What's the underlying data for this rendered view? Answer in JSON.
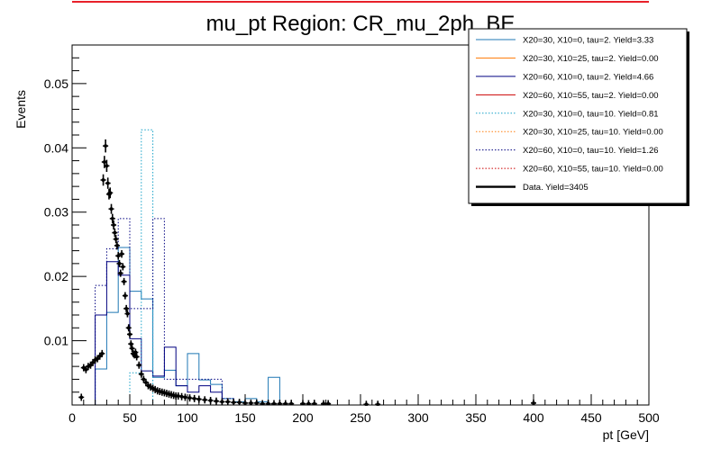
{
  "chart_data": {
    "type": "line",
    "title": "mu_pt Region: CR_mu_2ph_BE",
    "xlabel": "pt [GeV]",
    "ylabel": "Events",
    "xlim": [
      0,
      500
    ],
    "ylim": [
      0,
      0.056
    ],
    "x_ticks": [
      0,
      50,
      100,
      150,
      200,
      250,
      300,
      350,
      400,
      450,
      500
    ],
    "x_tick_labels": [
      "0",
      "50",
      "100",
      "150",
      "200",
      "250",
      "300",
      "350",
      "400",
      "450",
      "500"
    ],
    "y_ticks": [
      0.01,
      0.02,
      0.03,
      0.04,
      0.05
    ],
    "y_tick_labels": [
      "0.01",
      "0.02",
      "0.03",
      "0.04",
      "0.05"
    ],
    "grid": false,
    "legend_position": "top-right",
    "bin_width": 10,
    "series": [
      {
        "name": "X20=30, X10=0, tau=2. Yield=3.33",
        "color": "#1f77b4",
        "style": "solid",
        "edges": [
          20,
          30,
          40,
          50,
          60,
          70,
          80,
          90,
          100,
          110,
          120,
          130,
          140,
          150,
          160,
          170,
          180
        ],
        "values": [
          0.0056,
          0.0144,
          0.0245,
          0.0177,
          0.0165,
          0.0043,
          0.0054,
          0.003,
          0.008,
          0.0039,
          0.0032,
          0.001,
          0.0005,
          0.001,
          0.0005,
          0.0043
        ]
      },
      {
        "name": "X20=30, X10=25, tau=2. Yield=0.00",
        "color": "#ff7f0e",
        "style": "solid",
        "edges": [],
        "values": []
      },
      {
        "name": "X20=60, X10=0, tau=2. Yield=4.66",
        "color": "#000080",
        "style": "solid",
        "edges": [
          20,
          30,
          40,
          50,
          60,
          70,
          80,
          90,
          100,
          110,
          120,
          130
        ],
        "values": [
          0.014,
          0.0223,
          0.0202,
          0.0103,
          0.0053,
          0.0045,
          0.009,
          0.003,
          0.002,
          0.003,
          0.002
        ]
      },
      {
        "name": "X20=60, X10=55, tau=2. Yield=0.00",
        "color": "#cc0000",
        "style": "solid",
        "edges": [],
        "values": []
      },
      {
        "name": "X20=30, X10=0, tau=10. Yield=0.81",
        "color": "#17a2c8",
        "style": "dotted",
        "edges": [
          50,
          60,
          70
        ],
        "values": [
          0.005,
          0.0428
        ]
      },
      {
        "name": "X20=30, X10=25, tau=10. Yield=0.00",
        "color": "#ff7f0e",
        "style": "dotted",
        "edges": [],
        "values": []
      },
      {
        "name": "X20=60, X10=0, tau=10. Yield=1.26",
        "color": "#000080",
        "style": "dotted",
        "edges": [
          20,
          30,
          40,
          50,
          60,
          70,
          80,
          90,
          100,
          110,
          120,
          130,
          140
        ],
        "values": [
          0.0186,
          0.0243,
          0.029,
          0.015,
          0.015,
          0.029,
          0.004,
          0.004,
          0.004,
          0.004,
          0.004,
          0.001
        ]
      },
      {
        "name": "X20=60, X10=55, tau=10. Yield=0.00",
        "color": "#cc0000",
        "style": "dotted",
        "edges": [],
        "values": []
      },
      {
        "name": "Data. Yield=3405",
        "color": "#000000",
        "style": "points",
        "points": [
          [
            8,
            0.0012
          ],
          [
            10,
            0.0058
          ],
          [
            12,
            0.0055
          ],
          [
            14,
            0.006
          ],
          [
            16,
            0.0062
          ],
          [
            18,
            0.0066
          ],
          [
            20,
            0.007
          ],
          [
            22,
            0.0072
          ],
          [
            24,
            0.0076
          ],
          [
            26,
            0.008
          ],
          [
            27,
            0.035
          ],
          [
            28,
            0.0378
          ],
          [
            29,
            0.0403
          ],
          [
            30,
            0.0372
          ],
          [
            31,
            0.0345
          ],
          [
            32,
            0.0328
          ],
          [
            33,
            0.033
          ],
          [
            34,
            0.0305
          ],
          [
            35,
            0.029
          ],
          [
            36,
            0.028
          ],
          [
            37,
            0.0268
          ],
          [
            38,
            0.0258
          ],
          [
            39,
            0.0248
          ],
          [
            40,
            0.0232
          ],
          [
            41,
            0.022
          ],
          [
            42,
            0.0205
          ],
          [
            43,
            0.0235
          ],
          [
            44,
            0.0215
          ],
          [
            45,
            0.0192
          ],
          [
            46,
            0.017
          ],
          [
            47,
            0.015
          ],
          [
            48,
            0.0142
          ],
          [
            49,
            0.012
          ],
          [
            50,
            0.011
          ],
          [
            51,
            0.0095
          ],
          [
            52,
            0.0088
          ],
          [
            53,
            0.008
          ],
          [
            54,
            0.0078
          ],
          [
            55,
            0.0082
          ],
          [
            56,
            0.0075
          ],
          [
            58,
            0.0062
          ],
          [
            60,
            0.0048
          ],
          [
            62,
            0.004
          ],
          [
            64,
            0.0035
          ],
          [
            66,
            0.003
          ],
          [
            68,
            0.0028
          ],
          [
            70,
            0.0026
          ],
          [
            72,
            0.0024
          ],
          [
            74,
            0.0022
          ],
          [
            76,
            0.0021
          ],
          [
            78,
            0.002
          ],
          [
            80,
            0.0019
          ],
          [
            82,
            0.0018
          ],
          [
            84,
            0.0017
          ],
          [
            86,
            0.0016
          ],
          [
            88,
            0.0015
          ],
          [
            90,
            0.0014
          ],
          [
            92,
            0.0014
          ],
          [
            95,
            0.0013
          ],
          [
            98,
            0.0012
          ],
          [
            102,
            0.0011
          ],
          [
            106,
            0.001
          ],
          [
            110,
            0.0009
          ],
          [
            115,
            0.0008
          ],
          [
            120,
            0.0007
          ],
          [
            125,
            0.0006
          ],
          [
            130,
            0.0005
          ],
          [
            135,
            0.0005
          ],
          [
            140,
            0.0004
          ],
          [
            145,
            0.0004
          ],
          [
            150,
            0.0003
          ],
          [
            155,
            0.0003
          ],
          [
            160,
            0.0003
          ],
          [
            165,
            0.0002
          ],
          [
            170,
            0.0002
          ],
          [
            175,
            0.0002
          ],
          [
            180,
            0.0002
          ],
          [
            185,
            0.0002
          ],
          [
            190,
            0.0002
          ],
          [
            200,
            0.0002
          ],
          [
            205,
            0.0002
          ],
          [
            210,
            0.0002
          ],
          [
            218,
            0.0002
          ],
          [
            222,
            0.0002
          ],
          [
            255,
            0.0001
          ],
          [
            265,
            0.0001
          ],
          [
            400,
            0.0003
          ]
        ]
      }
    ]
  }
}
